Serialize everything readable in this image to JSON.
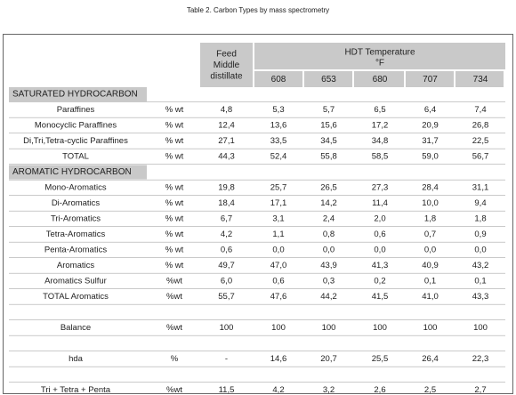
{
  "title": "Table 2. Carbon Types by mass spectrometry",
  "table": {
    "header": {
      "feed": [
        "Feed",
        "Middle",
        "distillate"
      ],
      "hdt": "HDT Temperature",
      "unit": "°F",
      "temperatures": [
        608,
        653,
        680,
        707,
        734
      ]
    },
    "sections": [
      {
        "title": "SATURATED HYDROCARBON",
        "rows": [
          {
            "label": "Paraffines",
            "unit": "% wt",
            "values": [
              "4,8",
              "5,3",
              "5,7",
              "6,5",
              "6,4",
              "7,4"
            ]
          },
          {
            "label": "Monocyclic Paraffines",
            "unit": "% wt",
            "values": [
              "12,4",
              "13,6",
              "15,6",
              "17,2",
              "20,9",
              "26,8"
            ]
          },
          {
            "label": "Di,Tri,Tetra-cyclic Paraffines",
            "unit": "% wt",
            "values": [
              "27,1",
              "33,5",
              "34,5",
              "34,8",
              "31,7",
              "22,5"
            ]
          },
          {
            "label": "TOTAL",
            "unit": "% wt",
            "values": [
              "44,3",
              "52,4",
              "55,8",
              "58,5",
              "59,0",
              "56,7"
            ]
          }
        ]
      },
      {
        "title": "AROMATIC HYDROCARBON",
        "rows": [
          {
            "label": "Mono-Aromatics",
            "unit": "% wt",
            "values": [
              "19,8",
              "25,7",
              "26,5",
              "27,3",
              "28,4",
              "31,1"
            ]
          },
          {
            "label": "Di-Aromatics",
            "unit": "% wt",
            "values": [
              "18,4",
              "17,1",
              "14,2",
              "11,4",
              "10,0",
              "9,4"
            ]
          },
          {
            "label": "Tri-Aromatics",
            "unit": "% wt",
            "values": [
              "6,7",
              "3,1",
              "2,4",
              "2,0",
              "1,8",
              "1,8"
            ]
          },
          {
            "label": "Tetra-Aromatics",
            "unit": "% wt",
            "values": [
              "4,2",
              "1,1",
              "0,8",
              "0,6",
              "0,7",
              "0,9"
            ]
          },
          {
            "label": "Penta-Aromatics",
            "unit": "% wt",
            "values": [
              "0,6",
              "0,0",
              "0,0",
              "0,0",
              "0,0",
              "0,0"
            ]
          },
          {
            "label": "Aromatics",
            "unit": "% wt",
            "values": [
              "49,7",
              "47,0",
              "43,9",
              "41,3",
              "40,9",
              "43,2"
            ]
          },
          {
            "label": "Aromatics Sulfur",
            "unit": "%wt",
            "values": [
              "6,0",
              "0,6",
              "0,3",
              "0,2",
              "0,1",
              "0,1"
            ]
          },
          {
            "label": "TOTAL Aromatics",
            "unit": "%wt",
            "values": [
              "55,7",
              "47,6",
              "44,2",
              "41,5",
              "41,0",
              "43,3"
            ]
          }
        ]
      }
    ],
    "other_rows": [
      {
        "label": "Balance",
        "unit": "%wt",
        "values": [
          "100",
          "100",
          "100",
          "100",
          "100",
          "100"
        ]
      },
      {
        "label": "hda",
        "unit": "%",
        "values": [
          "-",
          "14,6",
          "20,7",
          "25,5",
          "26,4",
          "22,3"
        ]
      },
      {
        "label": "Tri + Tetra + Penta",
        "unit": "%wt",
        "values": [
          "11,5",
          "4,2",
          "3,2",
          "2,6",
          "2,5",
          "2,7"
        ]
      }
    ]
  }
}
